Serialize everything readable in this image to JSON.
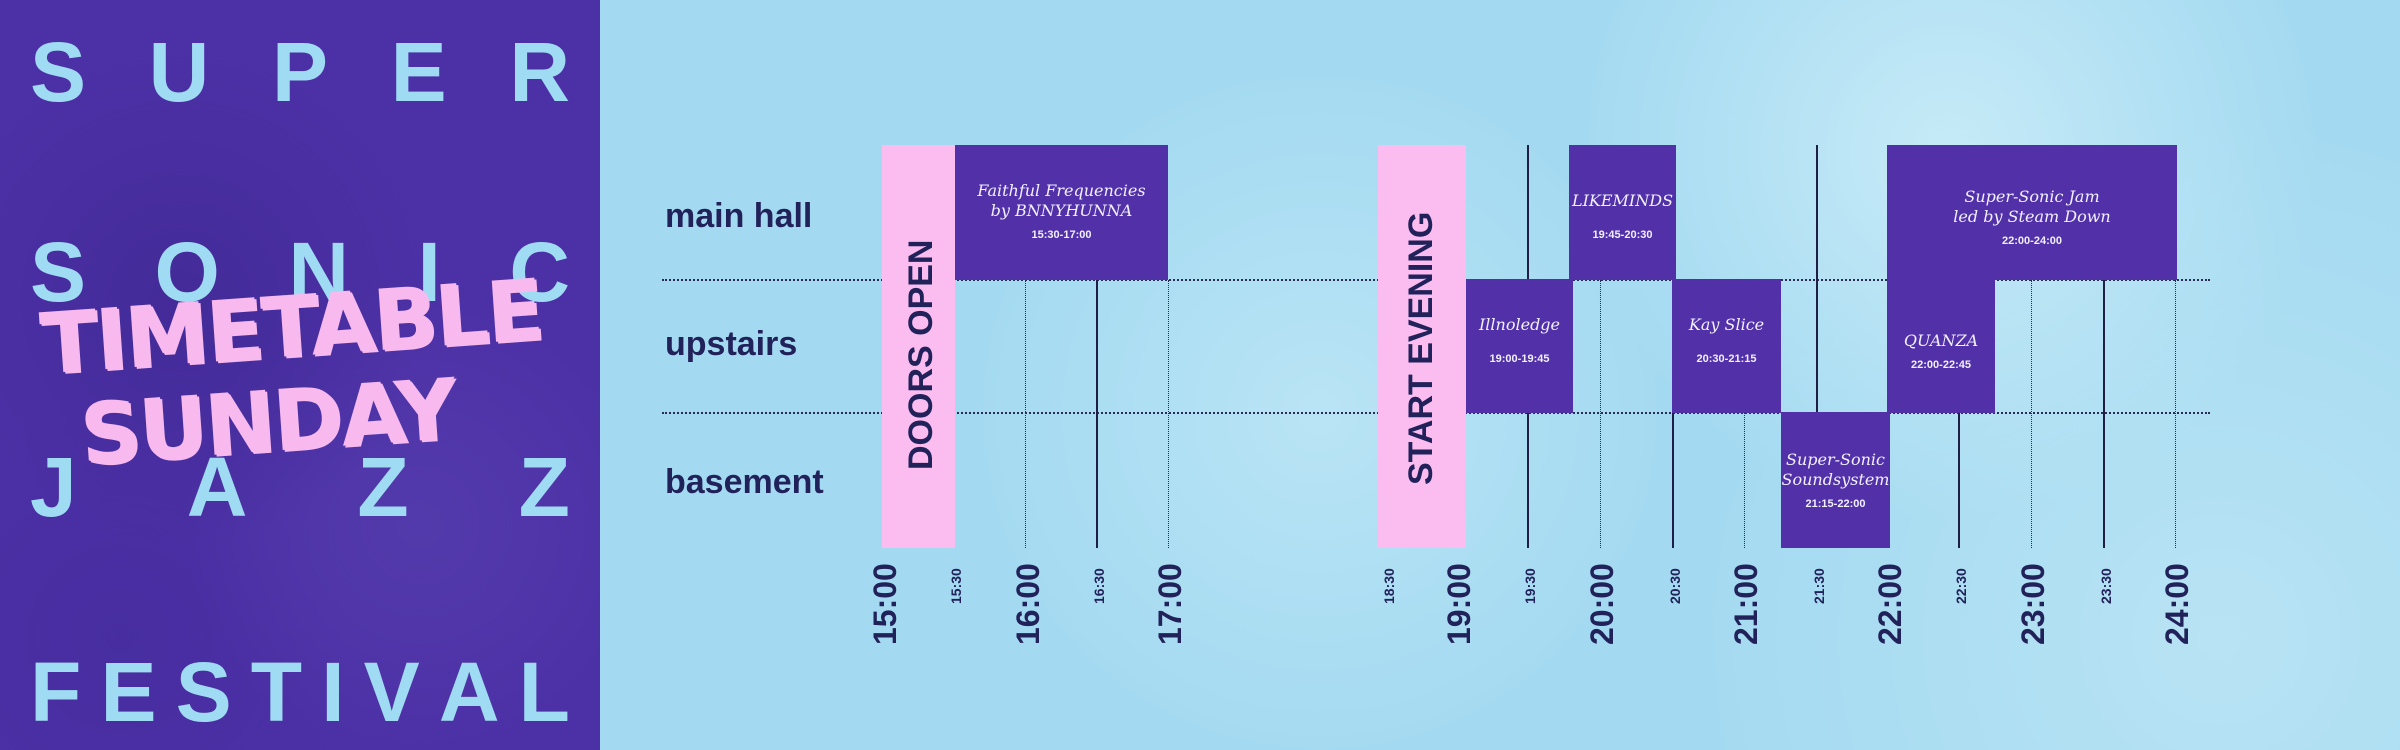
{
  "poster": {
    "rows": [
      {
        "letters": [
          "S",
          "U",
          "P",
          "E",
          "R"
        ]
      },
      {
        "letters": [
          "S",
          "O",
          "N",
          "I",
          "C"
        ]
      },
      {
        "letters": [
          "J",
          "A",
          "Z",
          "Z"
        ]
      },
      {
        "letters": [
          "F",
          "E",
          "S",
          "T",
          "I",
          "V",
          "A",
          "L"
        ]
      }
    ],
    "script_line1": "TIMETABLE",
    "script_line2": "SUNDAY"
  },
  "rooms": [
    "main hall",
    "upstairs",
    "basement"
  ],
  "markers": {
    "doors_open": "DOORS OPEN",
    "start_evening": "START EVENING"
  },
  "events": [
    {
      "title_line1": "Faithful Frequencies",
      "title_line2": "by BNNYHUNNA",
      "time": "15:30-17:00",
      "room": "main hall"
    },
    {
      "title_line1": "LIKEMINDS",
      "title_line2": "",
      "time": "19:45-20:30",
      "room": "main hall"
    },
    {
      "title_line1": "Super-Sonic Jam",
      "title_line2": "led by Steam Down",
      "time": "22:00-24:00",
      "room": "main hall"
    },
    {
      "title_line1": "Illnoledge",
      "title_line2": "",
      "time": "19:00-19:45",
      "room": "upstairs"
    },
    {
      "title_line1": "Kay Slice",
      "title_line2": "",
      "time": "20:30-21:15",
      "room": "upstairs"
    },
    {
      "title_line1": "QUANZA",
      "title_line2": "",
      "time": "22:00-22:45",
      "room": "upstairs"
    },
    {
      "title_line1": "Super-Sonic",
      "title_line2": "Soundsystem",
      "time": "21:15-22:00",
      "room": "basement"
    }
  ],
  "ticks": {
    "afternoon": [
      "15:00",
      "15:30",
      "16:00",
      "16:30",
      "17:00"
    ],
    "evening": [
      "18:30",
      "19:00",
      "19:30",
      "20:00",
      "20:30",
      "21:00",
      "21:30",
      "22:00",
      "22:30",
      "23:00",
      "23:30",
      "24:00"
    ]
  },
  "colors": {
    "panel": "#4c31a6",
    "background": "#a7dcf2",
    "event": "#5130a8",
    "marker": "#fbbcf0",
    "text": "#22225a"
  }
}
